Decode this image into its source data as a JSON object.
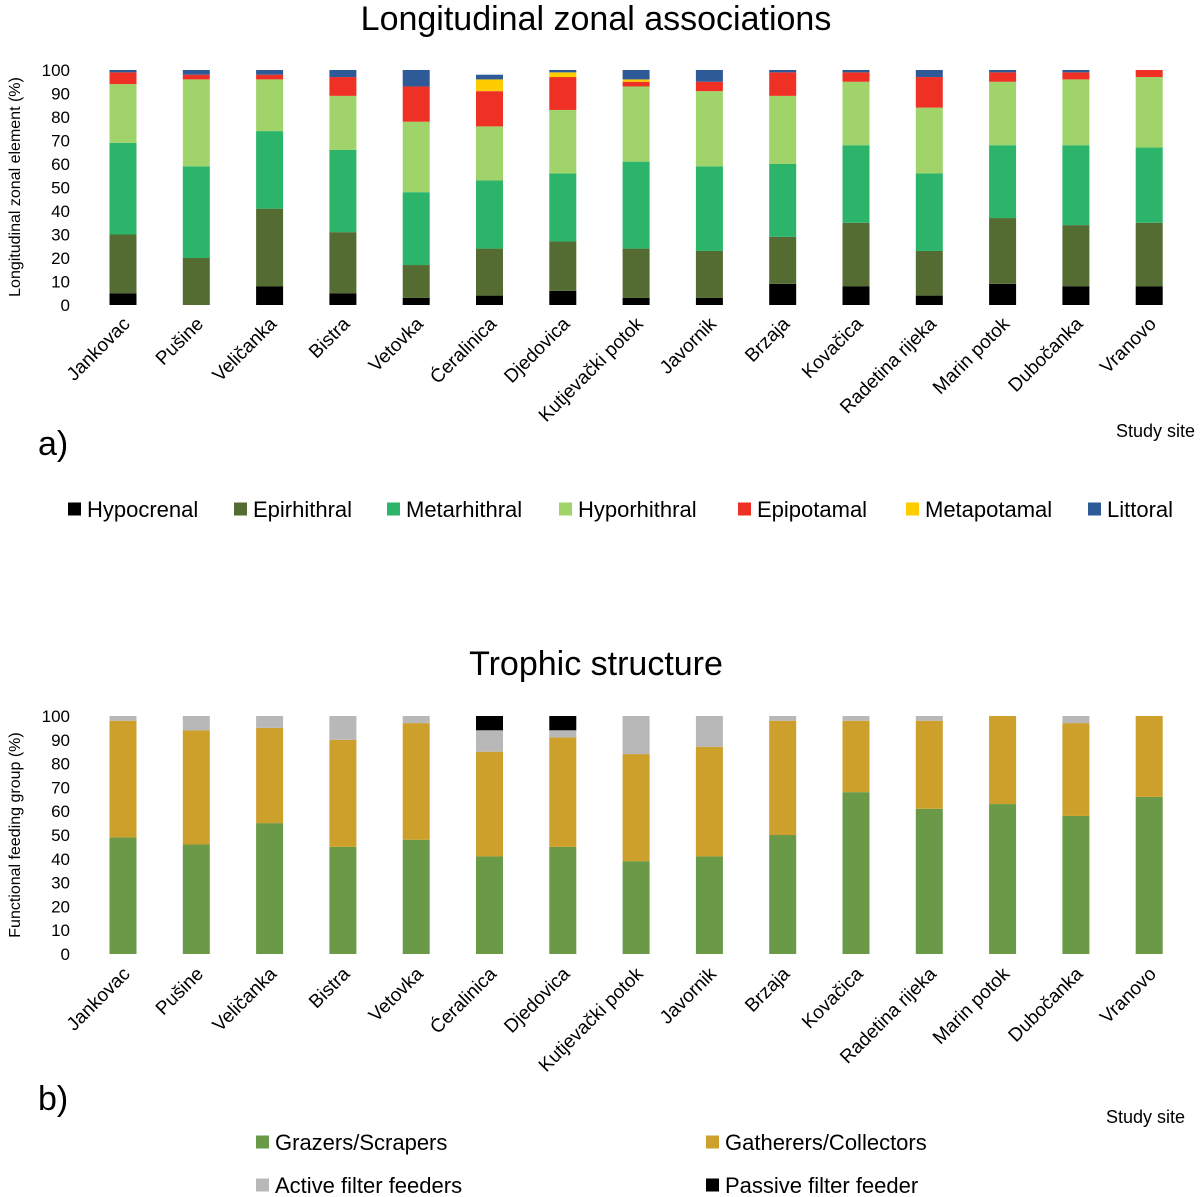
{
  "chart_data": [
    {
      "type": "bar",
      "stacked": true,
      "panel_label": "a)",
      "title": "Longitudinal zonal associations",
      "ylabel": "Longitudinal zonal element (%)",
      "xlabel": "Study site",
      "ylim": [
        0,
        100
      ],
      "yticks": [
        0,
        10,
        20,
        30,
        40,
        50,
        60,
        70,
        80,
        90,
        100
      ],
      "categories": [
        "Jankovac",
        "Pušine",
        "Veličanka",
        "Bistra",
        "Vetovka",
        "Ćeralinica",
        "Djedovica",
        "Kutjevački potok",
        "Javornik",
        "Brzaja",
        "Kovačica",
        "Radetina rijeka",
        "Marin potok",
        "Dubočanka",
        "Vranovo"
      ],
      "series": [
        {
          "name": "Hypocrenal",
          "color": "#000000",
          "values": [
            5,
            0,
            8,
            5,
            3,
            4,
            6,
            3,
            3,
            9,
            8,
            4,
            9,
            8,
            8
          ]
        },
        {
          "name": "Epirhithral",
          "color": "#546B32",
          "values": [
            25,
            20,
            33,
            26,
            14,
            20,
            21,
            21,
            20,
            20,
            27,
            19,
            28,
            26,
            27
          ]
        },
        {
          "name": "Metarhithral",
          "color": "#2BB46A",
          "values": [
            39,
            39,
            33,
            35,
            31,
            29,
            29,
            37,
            36,
            31,
            33,
            33,
            31,
            34,
            32
          ]
        },
        {
          "name": "Hyporhithral",
          "color": "#A0D46B",
          "values": [
            25,
            37,
            22,
            23,
            30,
            23,
            27,
            32,
            32,
            29,
            27,
            28,
            27,
            28,
            30
          ]
        },
        {
          "name": "Epipotamal",
          "color": "#EE3124",
          "values": [
            5,
            2,
            2,
            8,
            15,
            15,
            14,
            2,
            4,
            10,
            4,
            13,
            4,
            3,
            3
          ]
        },
        {
          "name": "Metapotamal",
          "color": "#FFCC00",
          "values": [
            0,
            0,
            0,
            0,
            0,
            5,
            2,
            1,
            0,
            0,
            0,
            0,
            0,
            0,
            0
          ]
        },
        {
          "name": "Littoral",
          "color": "#2E5A97",
          "values": [
            1,
            2,
            2,
            3,
            7,
            2,
            1,
            4,
            5,
            1,
            1,
            3,
            1,
            1,
            0
          ]
        }
      ]
    },
    {
      "type": "bar",
      "stacked": true,
      "panel_label": "b)",
      "title": "Trophic structure",
      "ylabel": "Functional feeding group (%)",
      "xlabel": "Study site",
      "ylim": [
        0,
        100
      ],
      "yticks": [
        0,
        10,
        20,
        30,
        40,
        50,
        60,
        70,
        80,
        90,
        100
      ],
      "categories": [
        "Jankovac",
        "Pušine",
        "Veličanka",
        "Bistra",
        "Vetovka",
        "Ćeralinica",
        "Djedovica",
        "Kutjevački potok",
        "Javornik",
        "Brzaja",
        "Kovačica",
        "Radetina rijeka",
        "Marin potok",
        "Dubočanka",
        "Vranovo"
      ],
      "series": [
        {
          "name": "Grazers/Scrapers",
          "color": "#6A9A48",
          "values": [
            49,
            46,
            55,
            45,
            48,
            41,
            45,
            39,
            41,
            50,
            68,
            61,
            63,
            58,
            66
          ]
        },
        {
          "name": "Gatherers/Collectors",
          "color": "#CDA02C",
          "values": [
            49,
            48,
            40,
            45,
            49,
            44,
            46,
            45,
            46,
            48,
            30,
            37,
            37,
            39,
            34
          ]
        },
        {
          "name": "Active filter feeders",
          "color": "#B8B8B8",
          "values": [
            2,
            6,
            5,
            10,
            3,
            9,
            3,
            16,
            13,
            2,
            2,
            2,
            0,
            3,
            0
          ]
        },
        {
          "name": "Passive filter feeder",
          "color": "#000000",
          "values": [
            0,
            0,
            0,
            0,
            0,
            6,
            6,
            0,
            0,
            0,
            0,
            0,
            0,
            0,
            0
          ]
        }
      ]
    }
  ]
}
